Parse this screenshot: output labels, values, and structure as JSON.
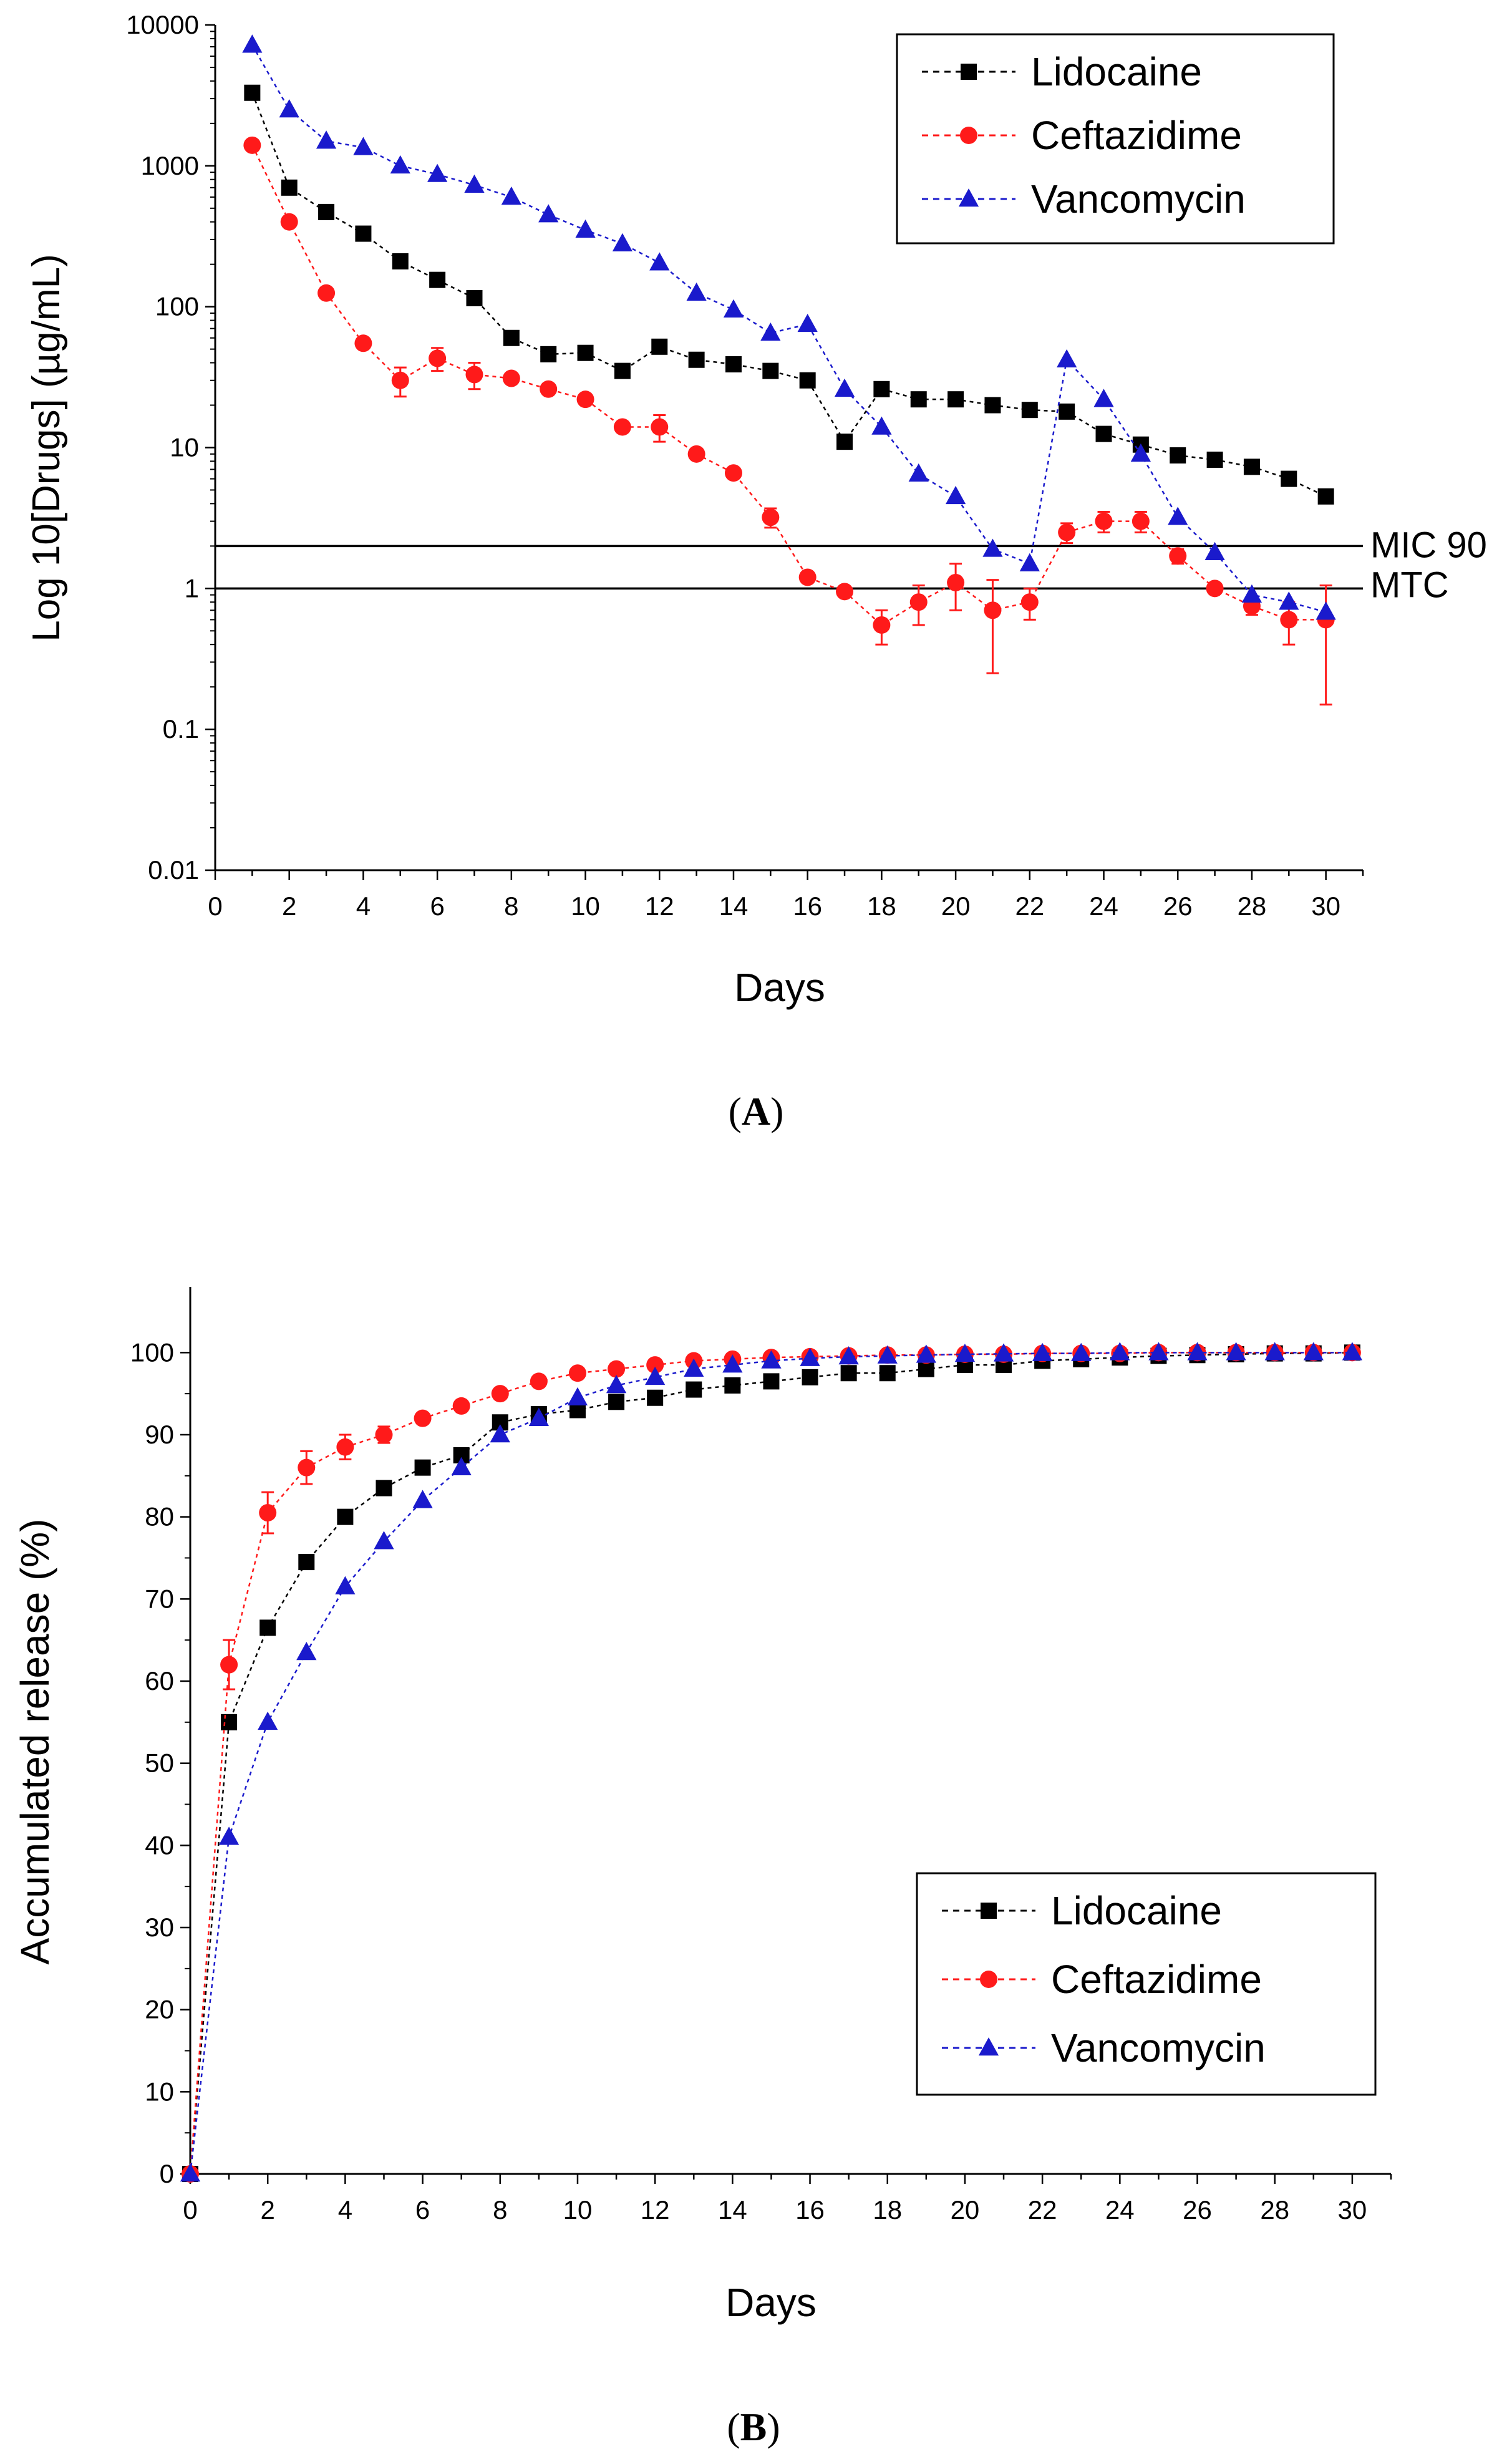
{
  "colors": {
    "lidocaine": "#000000",
    "ceftazidime": "#ff1a1a",
    "vancomycin": "#1a1acc",
    "axis": "#000000",
    "background": "#ffffff"
  },
  "panels": [
    {
      "id": "A",
      "label_open": "(",
      "label_letter": "A",
      "label_close": ")"
    },
    {
      "id": "B",
      "label_open": "(",
      "label_letter": "B",
      "label_close": ")"
    }
  ],
  "chart_data": [
    {
      "type": "line",
      "panel": "A",
      "scale": "log",
      "title": "",
      "xlabel": "Days",
      "ylabel": "Log 10[Drugs] (µg/mL)",
      "xlim": [
        0,
        31
      ],
      "ylim": [
        0.01,
        10000
      ],
      "xticks": [
        0,
        2,
        4,
        6,
        8,
        10,
        12,
        14,
        16,
        18,
        20,
        22,
        24,
        26,
        28,
        30
      ],
      "yticks": [
        0.01,
        0.1,
        1,
        10,
        100,
        1000,
        10000
      ],
      "ytick_labels": [
        "0.01",
        "0.1",
        "1",
        "10",
        "100",
        "1000",
        "10000"
      ],
      "legend_position": "top-right",
      "reference_lines": [
        {
          "label": "MIC 90",
          "value": 2
        },
        {
          "label": "MTC",
          "value": 1
        }
      ],
      "series": [
        {
          "name": "Lidocaine",
          "color_key": "lidocaine",
          "marker": "square",
          "x": [
            1,
            2,
            3,
            4,
            5,
            6,
            7,
            8,
            9,
            10,
            11,
            12,
            13,
            14,
            15,
            16,
            17,
            18,
            19,
            20,
            21,
            22,
            23,
            24,
            25,
            26,
            27,
            28,
            29,
            30
          ],
          "values": [
            3300,
            700,
            470,
            330,
            210,
            155,
            115,
            60,
            46,
            47,
            35,
            52,
            42,
            39,
            35,
            30,
            11,
            26,
            22,
            22,
            20,
            18.5,
            18,
            12.5,
            10.5,
            8.8,
            8.2,
            7.3,
            6,
            4.5
          ]
        },
        {
          "name": "Ceftazidime",
          "color_key": "ceftazidime",
          "marker": "circle",
          "x": [
            1,
            2,
            3,
            4,
            5,
            6,
            7,
            8,
            9,
            10,
            11,
            12,
            13,
            14,
            15,
            16,
            17,
            18,
            19,
            20,
            21,
            22,
            23,
            24,
            25,
            26,
            27,
            28,
            29,
            30
          ],
          "values": [
            1400,
            400,
            125,
            55,
            30,
            43,
            33,
            31,
            26,
            22,
            14,
            14,
            9,
            6.6,
            3.2,
            1.2,
            0.95,
            0.55,
            0.8,
            1.1,
            0.7,
            0.8,
            2.5,
            3,
            3,
            1.7,
            1,
            0.75,
            0.6,
            0.6
          ],
          "errors": [
            0,
            0,
            0,
            0,
            7,
            8,
            7,
            0,
            0,
            0,
            0,
            3,
            0,
            0,
            0.5,
            0,
            0,
            0.15,
            0.25,
            0.4,
            0.45,
            0.2,
            0.4,
            0.5,
            0.5,
            0.2,
            0,
            0.1,
            0.2,
            0.45
          ]
        },
        {
          "name": "Vancomycin",
          "color_key": "vancomycin",
          "marker": "triangle",
          "x": [
            1,
            2,
            3,
            4,
            5,
            6,
            7,
            8,
            9,
            10,
            11,
            12,
            13,
            14,
            15,
            16,
            17,
            18,
            19,
            20,
            21,
            22,
            23,
            24,
            25,
            26,
            27,
            28,
            29,
            30
          ],
          "values": [
            7200,
            2500,
            1500,
            1350,
            1000,
            870,
            730,
            600,
            450,
            350,
            280,
            205,
            125,
            95,
            65,
            75,
            26,
            14,
            6.5,
            4.5,
            1.9,
            1.5,
            42,
            22,
            9,
            3.2,
            1.8,
            0.9,
            0.8,
            0.68
          ]
        }
      ]
    },
    {
      "type": "line",
      "panel": "B",
      "scale": "linear",
      "title": "",
      "xlabel": "Days",
      "ylabel": "Accumulated release (%)",
      "xlim": [
        0,
        31
      ],
      "ylim": [
        0,
        108
      ],
      "xticks": [
        0,
        2,
        4,
        6,
        8,
        10,
        12,
        14,
        16,
        18,
        20,
        22,
        24,
        26,
        28,
        30
      ],
      "yticks": [
        0,
        10,
        20,
        30,
        40,
        50,
        60,
        70,
        80,
        90,
        100
      ],
      "ytick_labels": [
        "0",
        "10",
        "20",
        "30",
        "40",
        "50",
        "60",
        "70",
        "80",
        "90",
        "100"
      ],
      "legend_position": "bottom-right",
      "reference_lines": [],
      "series": [
        {
          "name": "Lidocaine",
          "color_key": "lidocaine",
          "marker": "square",
          "x": [
            0,
            1,
            2,
            3,
            4,
            5,
            6,
            7,
            8,
            9,
            10,
            11,
            12,
            13,
            14,
            15,
            16,
            17,
            18,
            19,
            20,
            21,
            22,
            23,
            24,
            25,
            26,
            27,
            28,
            29,
            30
          ],
          "values": [
            0,
            55,
            66.5,
            74.5,
            80,
            83.5,
            86,
            87.5,
            91.5,
            92.5,
            93,
            94,
            94.5,
            95.5,
            96,
            96.5,
            97,
            97.5,
            97.5,
            98,
            98.5,
            98.5,
            99,
            99.2,
            99.4,
            99.6,
            99.7,
            99.8,
            99.9,
            99.9,
            100
          ]
        },
        {
          "name": "Ceftazidime",
          "color_key": "ceftazidime",
          "marker": "circle",
          "x": [
            0,
            1,
            2,
            3,
            4,
            5,
            6,
            7,
            8,
            9,
            10,
            11,
            12,
            13,
            14,
            15,
            16,
            17,
            18,
            19,
            20,
            21,
            22,
            23,
            24,
            25,
            26,
            27,
            28,
            29,
            30
          ],
          "values": [
            0,
            62,
            80.5,
            86,
            88.5,
            90,
            92,
            93.5,
            95,
            96.5,
            97.5,
            98,
            98.5,
            99,
            99.2,
            99.4,
            99.5,
            99.6,
            99.7,
            99.7,
            99.8,
            99.8,
            99.9,
            99.9,
            99.9,
            100,
            100,
            100,
            100,
            100,
            100
          ],
          "errors": [
            0,
            3,
            2.5,
            2,
            1.5,
            1,
            0,
            0,
            0,
            0,
            0,
            0,
            0,
            0,
            0,
            0,
            0,
            0,
            0,
            0,
            0,
            0,
            0,
            0,
            0,
            0,
            0,
            0,
            0,
            0,
            0
          ]
        },
        {
          "name": "Vancomycin",
          "color_key": "vancomycin",
          "marker": "triangle",
          "x": [
            0,
            1,
            2,
            3,
            4,
            5,
            6,
            7,
            8,
            9,
            10,
            11,
            12,
            13,
            14,
            15,
            16,
            17,
            18,
            19,
            20,
            21,
            22,
            23,
            24,
            25,
            26,
            27,
            28,
            29,
            30
          ],
          "values": [
            0,
            41,
            55,
            63.5,
            71.5,
            77,
            82,
            86,
            90,
            92,
            94.5,
            96,
            97,
            98,
            98.5,
            99,
            99.3,
            99.5,
            99.6,
            99.7,
            99.8,
            99.85,
            99.9,
            99.9,
            100,
            100,
            100,
            100,
            100,
            100,
            100
          ]
        }
      ]
    }
  ]
}
